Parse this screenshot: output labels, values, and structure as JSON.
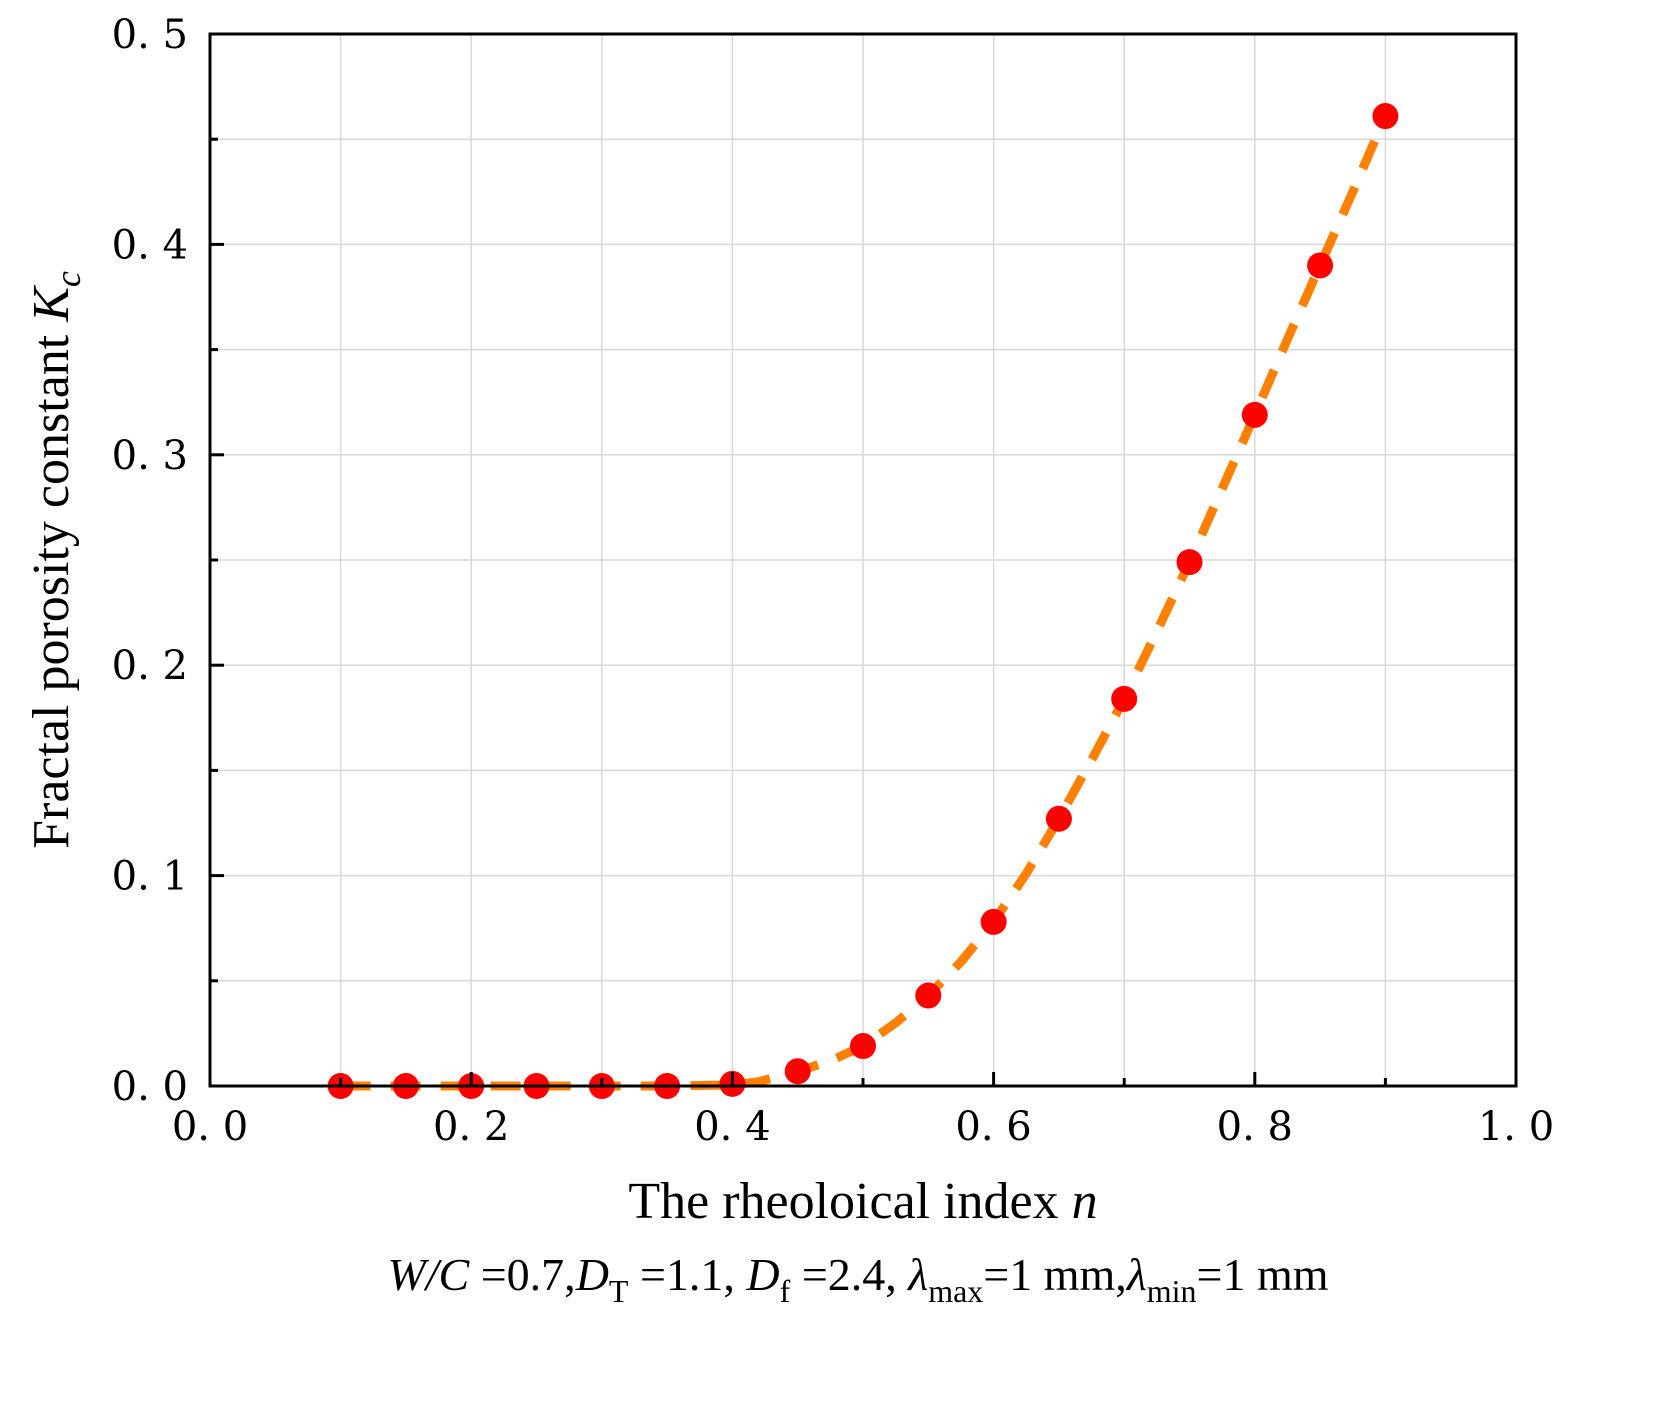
{
  "chart_data": {
    "type": "scatter",
    "title": "",
    "xlabel": {
      "text": "The rheoloical index ",
      "var": "n"
    },
    "ylabel": {
      "text": "Fractal porosity constant ",
      "var": "K",
      "sub": "c"
    },
    "xlim": [
      0.0,
      1.0
    ],
    "ylim": [
      0.0,
      0.5
    ],
    "x_major_ticks": [
      0.0,
      0.2,
      0.4,
      0.6,
      0.8,
      1.0
    ],
    "x_tick_labels": [
      "0. 0",
      "0. 2",
      "0. 4",
      "0. 6",
      "0. 8",
      "1. 0"
    ],
    "y_major_ticks": [
      0.0,
      0.1,
      0.2,
      0.3,
      0.4,
      0.5
    ],
    "y_tick_labels": [
      "0. 0",
      "0. 1",
      "0. 2",
      "0. 3",
      "0. 4",
      "0. 5"
    ],
    "grid": true,
    "series": [
      {
        "name": "points",
        "style": "markers",
        "color": "#ff0000",
        "x": [
          0.1,
          0.15,
          0.2,
          0.25,
          0.3,
          0.35,
          0.4,
          0.45,
          0.5,
          0.55,
          0.6,
          0.65,
          0.7,
          0.75,
          0.8,
          0.85,
          0.9
        ],
        "y": [
          0.0,
          0.0,
          0.0,
          0.0,
          0.0,
          0.0,
          0.001,
          0.007,
          0.019,
          0.043,
          0.078,
          0.127,
          0.184,
          0.249,
          0.319,
          0.39,
          0.461
        ]
      },
      {
        "name": "fit",
        "style": "dashed-line",
        "color": "#ff8000",
        "x": [
          0.1,
          0.15,
          0.2,
          0.25,
          0.3,
          0.35,
          0.4,
          0.42,
          0.45,
          0.475,
          0.5,
          0.525,
          0.55,
          0.575,
          0.6,
          0.625,
          0.65,
          0.675,
          0.7,
          0.725,
          0.75,
          0.775,
          0.8,
          0.825,
          0.85,
          0.875,
          0.9
        ],
        "y": [
          0.0,
          0.0,
          0.0,
          0.0,
          0.0,
          0.0,
          0.0005,
          0.002,
          0.007,
          0.012,
          0.019,
          0.03,
          0.043,
          0.059,
          0.078,
          0.101,
          0.127,
          0.155,
          0.184,
          0.216,
          0.249,
          0.284,
          0.319,
          0.355,
          0.39,
          0.425,
          0.461
        ]
      }
    ]
  },
  "caption": {
    "wc_var": "W/C",
    "wc_val": " =0.7,",
    "dt_var": "D",
    "dt_sub": "T",
    "dt_val": " =1.1, ",
    "df_var": "D",
    "df_sub": "f",
    "df_val": " =2.4, ",
    "lmax_var": "λ",
    "lmax_sub": "max",
    "lmax_val": "=1 mm,",
    "lmin_var": "λ",
    "lmin_sub": "min",
    "lmin_val": "=1 mm"
  }
}
